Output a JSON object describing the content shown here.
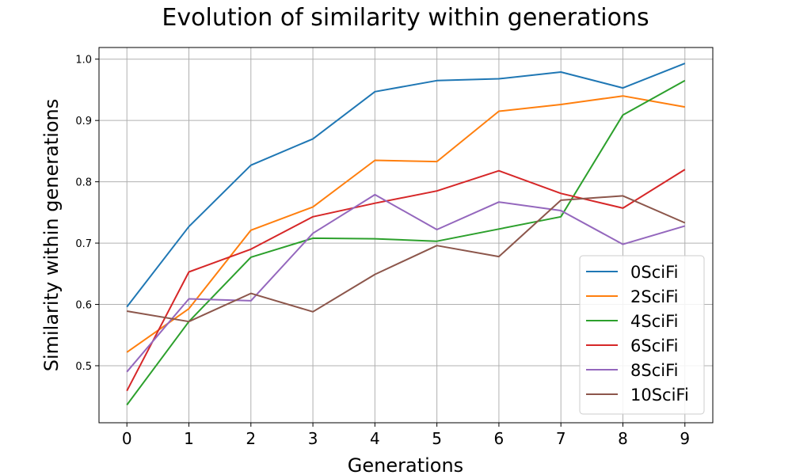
{
  "chart_data": {
    "type": "line",
    "title": "Evolution of similarity within generations",
    "xlabel": "Generations",
    "ylabel": "Similarity within generations",
    "x": [
      0,
      1,
      2,
      3,
      4,
      5,
      6,
      7,
      8,
      9
    ],
    "xticks": [
      "0",
      "1",
      "2",
      "3",
      "4",
      "5",
      "6",
      "7",
      "8",
      "9"
    ],
    "yticks": [
      "0.5",
      "0.6",
      "0.7",
      "0.8",
      "0.9",
      "1.0"
    ],
    "xlim": [
      -0.45,
      9.45
    ],
    "ylim": [
      0.407,
      1.019
    ],
    "grid": true,
    "legend_position": "lower-right",
    "series": [
      {
        "name": "0SciFi",
        "color": "#1f77b4",
        "values": [
          0.596,
          0.727,
          0.827,
          0.87,
          0.947,
          0.965,
          0.968,
          0.979,
          0.953,
          0.993
        ]
      },
      {
        "name": "2SciFi",
        "color": "#ff7f0e",
        "values": [
          0.522,
          0.593,
          0.721,
          0.759,
          0.835,
          0.833,
          0.915,
          0.926,
          0.94,
          0.922
        ]
      },
      {
        "name": "4SciFi",
        "color": "#2ca02c",
        "values": [
          0.436,
          0.572,
          0.677,
          0.708,
          0.707,
          0.703,
          0.723,
          0.743,
          0.909,
          0.965
        ]
      },
      {
        "name": "6SciFi",
        "color": "#d62728",
        "values": [
          0.459,
          0.653,
          0.69,
          0.743,
          0.765,
          0.785,
          0.818,
          0.781,
          0.757,
          0.82
        ]
      },
      {
        "name": "8SciFi",
        "color": "#9467bd",
        "values": [
          0.49,
          0.609,
          0.606,
          0.716,
          0.779,
          0.722,
          0.767,
          0.753,
          0.698,
          0.728
        ]
      },
      {
        "name": "10SciFi",
        "color": "#8c564b",
        "values": [
          0.589,
          0.572,
          0.618,
          0.588,
          0.649,
          0.696,
          0.678,
          0.77,
          0.777,
          0.733
        ]
      }
    ]
  }
}
